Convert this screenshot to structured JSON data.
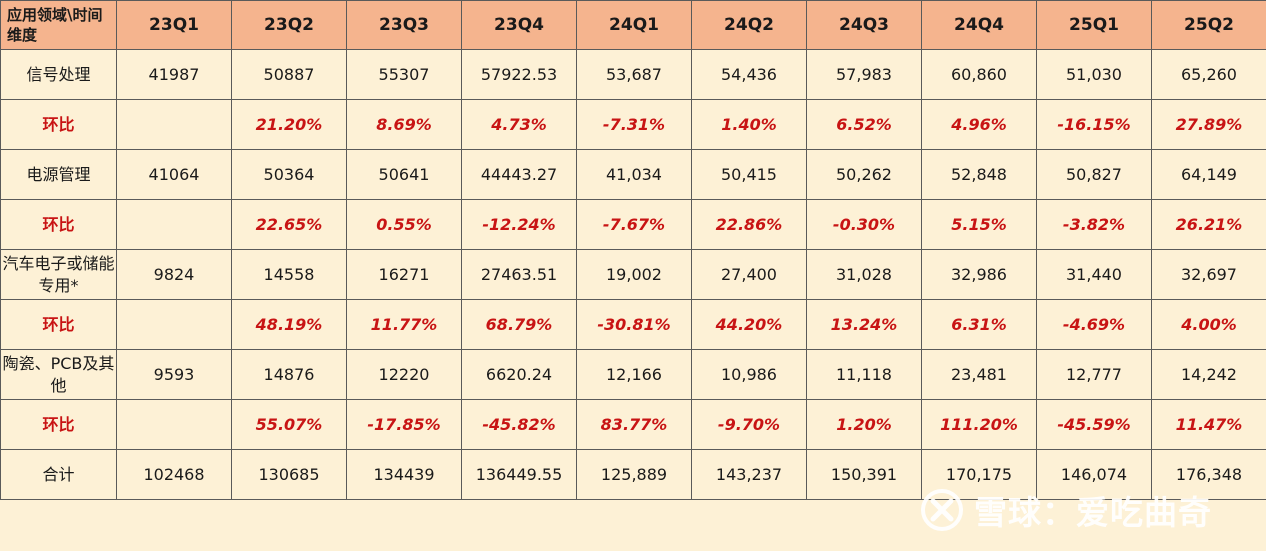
{
  "header": {
    "corner": "应用领域\\时间维度",
    "periods": [
      "23Q1",
      "23Q2",
      "23Q3",
      "23Q4",
      "24Q1",
      "24Q2",
      "24Q3",
      "24Q4",
      "25Q1",
      "25Q2"
    ]
  },
  "rows": [
    {
      "label": "信号处理",
      "values": [
        "41987",
        "50887",
        "55307",
        "57922.53",
        "53,687",
        "54,436",
        "57,983",
        "60,860",
        "51,030",
        "65,260"
      ]
    },
    {
      "label": "环比",
      "values": [
        "",
        "21.20%",
        "8.69%",
        "4.73%",
        "-7.31%",
        "1.40%",
        "6.52%",
        "4.96%",
        "-16.15%",
        "27.89%"
      ]
    },
    {
      "label": "电源管理",
      "values": [
        "41064",
        "50364",
        "50641",
        "44443.27",
        "41,034",
        "50,415",
        "50,262",
        "52,848",
        "50,827",
        "64,149"
      ]
    },
    {
      "label": "环比",
      "values": [
        "",
        "22.65%",
        "0.55%",
        "-12.24%",
        "-7.67%",
        "22.86%",
        "-0.30%",
        "5.15%",
        "-3.82%",
        "26.21%"
      ]
    },
    {
      "label": "汽车电子或储能专用*",
      "values": [
        "9824",
        "14558",
        "16271",
        "27463.51",
        "19,002",
        "27,400",
        "31,028",
        "32,986",
        "31,440",
        "32,697"
      ]
    },
    {
      "label": "环比",
      "values": [
        "",
        "48.19%",
        "11.77%",
        "68.79%",
        "-30.81%",
        "44.20%",
        "13.24%",
        "6.31%",
        "-4.69%",
        "4.00%"
      ]
    },
    {
      "label": "陶瓷、PCB及其他",
      "values": [
        "9593",
        "14876",
        "12220",
        "6620.24",
        "12,166",
        "10,986",
        "11,118",
        "23,481",
        "12,777",
        "14,242"
      ]
    },
    {
      "label": "环比",
      "values": [
        "",
        "55.07%",
        "-17.85%",
        "-45.82%",
        "83.77%",
        "-9.70%",
        "1.20%",
        "111.20%",
        "-45.59%",
        "11.47%"
      ]
    },
    {
      "label": "合计",
      "values": [
        "102468",
        "130685",
        "134439",
        "136449.55",
        "125,889",
        "143,237",
        "150,391",
        "170,175",
        "146,074",
        "176,348"
      ]
    }
  ],
  "watermark": {
    "text": "雪球：爱吃曲奇",
    "icon": "xueqiu-logo-icon"
  },
  "colors": {
    "header_bg": "#f5b48e",
    "body_bg": "#fdf1d6",
    "ratio_text": "#c81414"
  }
}
